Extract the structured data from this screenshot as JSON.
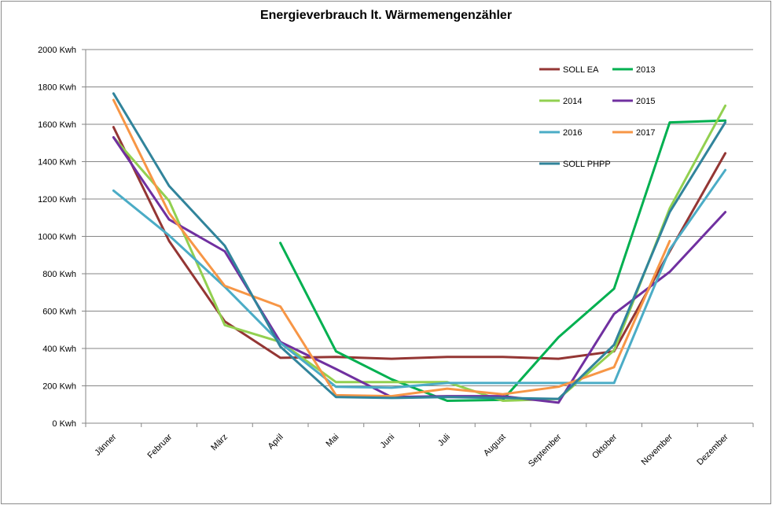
{
  "chart_data": {
    "type": "line",
    "title": "Energieverbrauch lt. Wärmemengenzähler",
    "xlabel": "",
    "ylabel": "",
    "ylim": [
      0,
      2000
    ],
    "ytick_step": 200,
    "y_unit": "Kwh",
    "grid": true,
    "legend_position": "top-right (inside plot)",
    "categories": [
      "Jänner",
      "Februar",
      "März",
      "April",
      "Mai",
      "Juni",
      "Juli",
      "August",
      "September",
      "Oktober",
      "November",
      "Dezember"
    ],
    "series": [
      {
        "name": "SOLL EA",
        "color": "#943634",
        "values": [
          1585,
          975,
          545,
          350,
          355,
          345,
          355,
          355,
          345,
          385,
          920,
          1445
        ]
      },
      {
        "name": "2013",
        "color": "#00b050",
        "values": [
          null,
          null,
          null,
          965,
          385,
          235,
          120,
          125,
          460,
          720,
          1610,
          1620
        ]
      },
      {
        "name": "2014",
        "color": "#92d050",
        "values": [
          1530,
          1190,
          525,
          435,
          220,
          220,
          220,
          120,
          130,
          390,
          1150,
          1700
        ]
      },
      {
        "name": "2015",
        "color": "#7030a0",
        "values": [
          1530,
          1090,
          920,
          435,
          290,
          140,
          145,
          145,
          110,
          585,
          810,
          1130
        ]
      },
      {
        "name": "2016",
        "color": "#4bacc6",
        "values": [
          1245,
          1005,
          730,
          430,
          195,
          190,
          215,
          215,
          215,
          215,
          930,
          1355
        ]
      },
      {
        "name": "2017",
        "color": "#f79646",
        "values": [
          1730,
          1125,
          735,
          625,
          150,
          145,
          185,
          155,
          195,
          300,
          975,
          null
        ]
      },
      {
        "name": "SOLL PHPP",
        "color": "#31849b",
        "values": [
          1765,
          1270,
          950,
          410,
          140,
          135,
          140,
          135,
          130,
          420,
          1130,
          1610
        ]
      }
    ]
  }
}
